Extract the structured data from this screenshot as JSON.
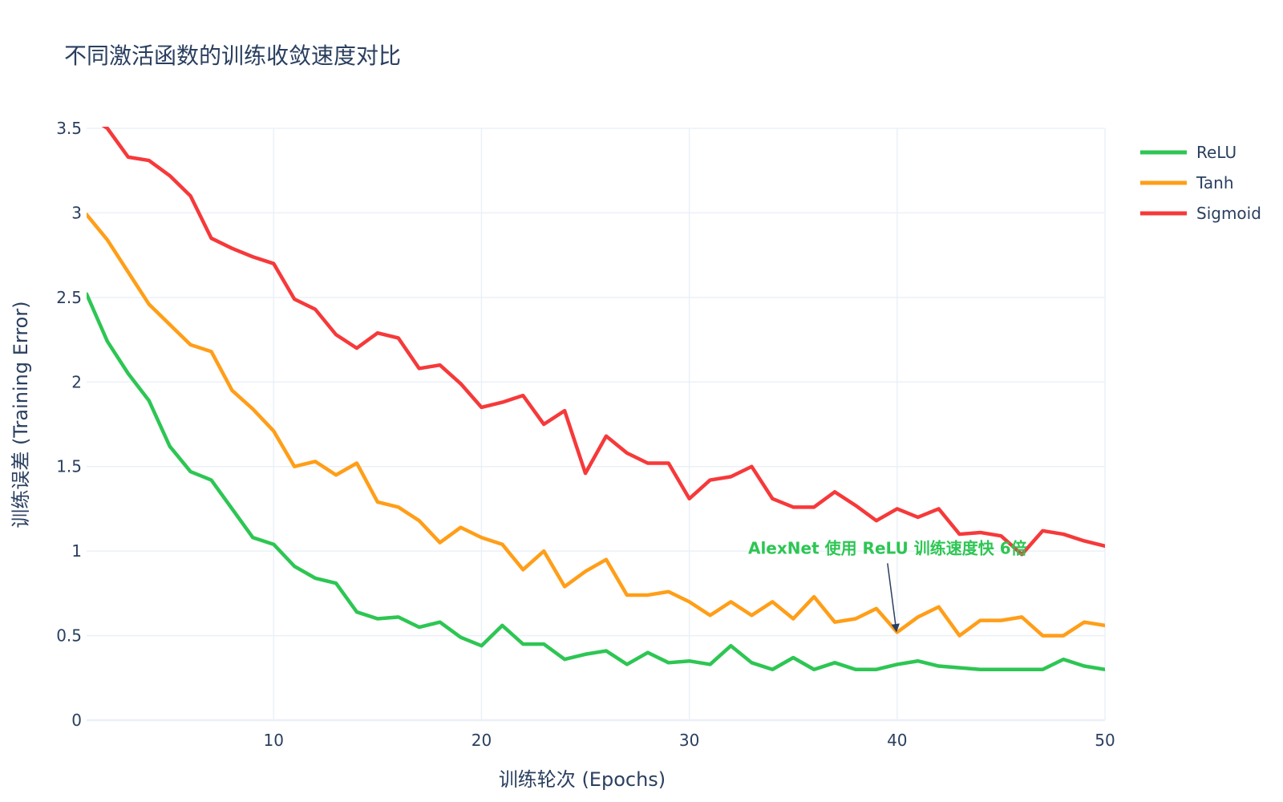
{
  "chart_data": {
    "type": "line",
    "title": "不同激活函数的训练收敛速度对比",
    "xlabel": "训练轮次 (Epochs)",
    "ylabel": "训练误差 (Training Error)",
    "xlim": [
      1,
      50
    ],
    "ylim": [
      0,
      3.5
    ],
    "x_ticks": [
      10,
      20,
      30,
      40,
      50
    ],
    "y_ticks": [
      0,
      0.5,
      1,
      1.5,
      2,
      2.5,
      3,
      3.5
    ],
    "y_tick_labels": [
      "0",
      "0.5",
      "1",
      "1.5",
      "2",
      "2.5",
      "3",
      "3.5"
    ],
    "grid": true,
    "legend_position": "top-right",
    "x": [
      1,
      2,
      3,
      4,
      5,
      6,
      7,
      8,
      9,
      10,
      11,
      12,
      13,
      14,
      15,
      16,
      17,
      18,
      19,
      20,
      21,
      22,
      23,
      24,
      25,
      26,
      27,
      28,
      29,
      30,
      31,
      32,
      33,
      34,
      35,
      36,
      37,
      38,
      39,
      40,
      41,
      42,
      43,
      44,
      45,
      46,
      47,
      48,
      49,
      50
    ],
    "series": [
      {
        "name": "ReLU",
        "color": "#2dc653",
        "values": [
          2.52,
          2.24,
          2.05,
          1.89,
          1.62,
          1.47,
          1.42,
          1.25,
          1.08,
          1.04,
          0.91,
          0.84,
          0.81,
          0.64,
          0.6,
          0.61,
          0.55,
          0.58,
          0.49,
          0.44,
          0.56,
          0.45,
          0.45,
          0.36,
          0.39,
          0.41,
          0.33,
          0.4,
          0.34,
          0.35,
          0.33,
          0.44,
          0.34,
          0.3,
          0.37,
          0.3,
          0.34,
          0.3,
          0.3,
          0.33,
          0.35,
          0.32,
          0.31,
          0.3,
          0.3,
          0.3,
          0.3,
          0.36,
          0.32,
          0.3
        ]
      },
      {
        "name": "Tanh",
        "color": "#ff9e18",
        "values": [
          2.99,
          2.84,
          2.65,
          2.46,
          2.34,
          2.22,
          2.18,
          1.95,
          1.84,
          1.71,
          1.5,
          1.53,
          1.45,
          1.52,
          1.29,
          1.26,
          1.18,
          1.05,
          1.14,
          1.08,
          1.04,
          0.89,
          1.0,
          0.79,
          0.88,
          0.95,
          0.74,
          0.74,
          0.76,
          0.7,
          0.62,
          0.7,
          0.62,
          0.7,
          0.6,
          0.73,
          0.58,
          0.6,
          0.66,
          0.52,
          0.61,
          0.67,
          0.5,
          0.59,
          0.59,
          0.61,
          0.5,
          0.5,
          0.58,
          0.56
        ]
      },
      {
        "name": "Sigmoid",
        "color": "#f6393a",
        "values": [
          3.58,
          3.5,
          3.33,
          3.31,
          3.22,
          3.1,
          2.85,
          2.79,
          2.74,
          2.7,
          2.49,
          2.43,
          2.28,
          2.2,
          2.29,
          2.26,
          2.08,
          2.1,
          1.99,
          1.85,
          1.88,
          1.92,
          1.75,
          1.83,
          1.46,
          1.68,
          1.58,
          1.52,
          1.52,
          1.31,
          1.42,
          1.44,
          1.5,
          1.31,
          1.26,
          1.26,
          1.35,
          1.27,
          1.18,
          1.25,
          1.2,
          1.25,
          1.1,
          1.11,
          1.09,
          0.98,
          1.12,
          1.1,
          1.06,
          1.03
        ]
      }
    ],
    "annotations": [
      {
        "text": "AlexNet 使用 ReLU 训练速度快 6倍",
        "color": "#2dc653",
        "x": 40,
        "y": 0.52,
        "arrow": true
      }
    ]
  }
}
